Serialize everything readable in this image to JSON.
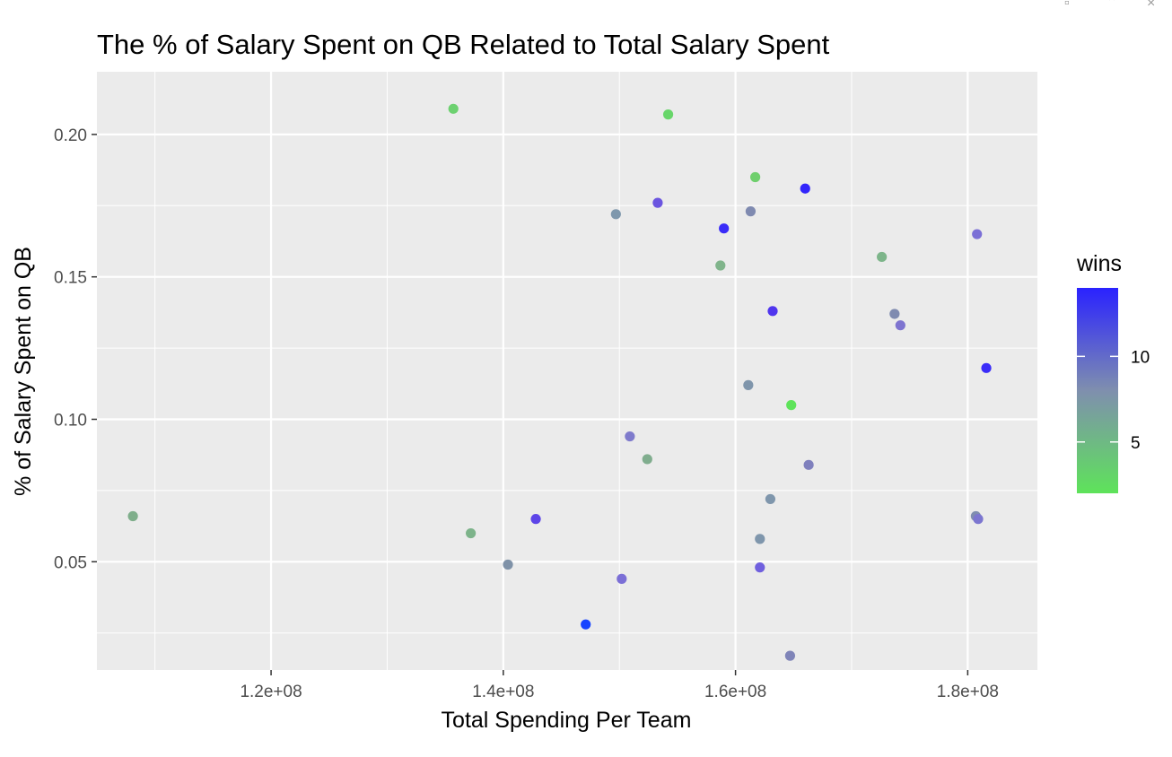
{
  "window": {
    "controls": [
      {
        "name": "restore-icon",
        "glyph": "▫"
      },
      {
        "name": "collapse-icon",
        "glyph": "⌃"
      },
      {
        "name": "close-icon",
        "glyph": "×"
      }
    ]
  },
  "chart_data": {
    "type": "scatter",
    "title": "The % of Salary Spent on QB Related to Total Salary Spent",
    "xlabel": "Total Spending Per Team",
    "ylabel": "% of Salary Spent on QB",
    "xlim": [
      105000000,
      186000000
    ],
    "ylim": [
      0.012,
      0.222
    ],
    "x_ticks": [
      120000000,
      140000000,
      160000000,
      180000000
    ],
    "x_tick_labels": [
      "1.2e+08",
      "1.4e+08",
      "1.6e+08",
      "1.8e+08"
    ],
    "y_ticks": [
      0.05,
      0.1,
      0.15,
      0.2
    ],
    "y_tick_labels": [
      "0.05",
      "0.10",
      "0.15",
      "0.20"
    ],
    "grid": true,
    "panel_background": "#ebebeb",
    "grid_color": "#ffffff",
    "color_scale": {
      "title": "wins",
      "low_color": "#5ee35a",
      "high_color": "#2a22ff",
      "range": [
        2,
        14
      ],
      "ticks": [
        5,
        10
      ],
      "tick_labels": [
        "5",
        "10"
      ],
      "legend_position": "right"
    },
    "points": [
      {
        "x": 108100000,
        "y": 0.066,
        "wins": 5.5,
        "color": "#7fae8b"
      },
      {
        "x": 135700000,
        "y": 0.209,
        "wins": 3,
        "color": "#6dd170"
      },
      {
        "x": 137200000,
        "y": 0.06,
        "wins": 4.5,
        "color": "#7db38a"
      },
      {
        "x": 140400000,
        "y": 0.049,
        "wins": 8,
        "color": "#7f92a8"
      },
      {
        "x": 142800000,
        "y": 0.065,
        "wins": 13,
        "color": "#5d45e8"
      },
      {
        "x": 147100000,
        "y": 0.028,
        "wins": 14,
        "color": "#1744ff"
      },
      {
        "x": 149700000,
        "y": 0.172,
        "wins": 8,
        "color": "#7f98ad"
      },
      {
        "x": 150200000,
        "y": 0.044,
        "wins": 11,
        "color": "#7b6fd6"
      },
      {
        "x": 150900000,
        "y": 0.094,
        "wins": 10,
        "color": "#7f7bcc"
      },
      {
        "x": 152400000,
        "y": 0.086,
        "wins": 5.5,
        "color": "#80ad8e"
      },
      {
        "x": 153300000,
        "y": 0.176,
        "wins": 12,
        "color": "#6b55e0"
      },
      {
        "x": 154200000,
        "y": 0.207,
        "wins": 2.5,
        "color": "#68d66a"
      },
      {
        "x": 158700000,
        "y": 0.154,
        "wins": 5,
        "color": "#80b48b"
      },
      {
        "x": 159000000,
        "y": 0.167,
        "wins": 14,
        "color": "#3a2cf8"
      },
      {
        "x": 161100000,
        "y": 0.112,
        "wins": 8,
        "color": "#7f95ab"
      },
      {
        "x": 161300000,
        "y": 0.173,
        "wins": 9,
        "color": "#7f8ab0"
      },
      {
        "x": 161700000,
        "y": 0.185,
        "wins": 3,
        "color": "#6fcf6d"
      },
      {
        "x": 162100000,
        "y": 0.058,
        "wins": 8,
        "color": "#7f96ac"
      },
      {
        "x": 162100000,
        "y": 0.048,
        "wins": 12,
        "color": "#7060de"
      },
      {
        "x": 163000000,
        "y": 0.072,
        "wins": 8,
        "color": "#7f96ac"
      },
      {
        "x": 163200000,
        "y": 0.138,
        "wins": 13,
        "color": "#5036ee"
      },
      {
        "x": 164700000,
        "y": 0.017,
        "wins": 9,
        "color": "#7f84b8"
      },
      {
        "x": 164800000,
        "y": 0.105,
        "wins": 2,
        "color": "#5ee35a"
      },
      {
        "x": 166000000,
        "y": 0.181,
        "wins": 14,
        "color": "#3326fb"
      },
      {
        "x": 166300000,
        "y": 0.084,
        "wins": 9.5,
        "color": "#7f80bd"
      },
      {
        "x": 172600000,
        "y": 0.157,
        "wins": 5.5,
        "color": "#7db58a"
      },
      {
        "x": 173700000,
        "y": 0.137,
        "wins": 8.5,
        "color": "#7f8bb0"
      },
      {
        "x": 174200000,
        "y": 0.133,
        "wins": 10.5,
        "color": "#7e74d0"
      },
      {
        "x": 180700000,
        "y": 0.066,
        "wins": 8,
        "color": "#7f8db0"
      },
      {
        "x": 180800000,
        "y": 0.165,
        "wins": 11,
        "color": "#7b6fd6"
      },
      {
        "x": 180900000,
        "y": 0.065,
        "wins": 10.5,
        "color": "#7c76d0"
      },
      {
        "x": 181600000,
        "y": 0.118,
        "wins": 14,
        "color": "#3a2cf8"
      }
    ]
  }
}
